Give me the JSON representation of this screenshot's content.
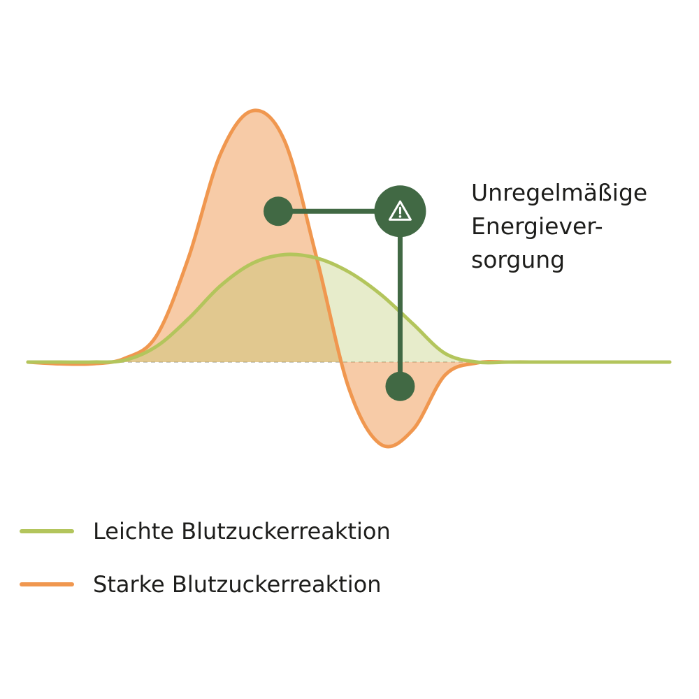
{
  "chart_data": {
    "type": "area",
    "title": "",
    "xlabel": "",
    "ylabel": "",
    "grid": false,
    "legend_placement": "bottom-left",
    "ylim": [
      -1,
      3
    ],
    "x": [
      0,
      1,
      2,
      3,
      4,
      5,
      6,
      7,
      8,
      9,
      10,
      11,
      12,
      13,
      14,
      15,
      16,
      17,
      18,
      19,
      20
    ],
    "series": [
      {
        "name": "Leichte Blutzuckerreaktion",
        "color": "#b3c55c",
        "values": [
          0,
          0,
          0,
          0.02,
          0.18,
          0.5,
          0.88,
          1.14,
          1.24,
          1.2,
          1.04,
          0.78,
          0.44,
          0.1,
          0,
          0,
          0,
          0,
          0,
          0,
          0
        ]
      },
      {
        "name": "Starke Blutzuckerreaktion",
        "color": "#f0974f",
        "values": [
          0,
          -0.02,
          -0.02,
          0.04,
          0.3,
          1.2,
          2.4,
          2.9,
          2.55,
          1.2,
          -0.3,
          -0.95,
          -0.78,
          -0.15,
          -0.01,
          0,
          0,
          0,
          0,
          0,
          0
        ]
      }
    ],
    "annotation": {
      "lines": [
        "Unregelmäßige",
        "Energiever-",
        "sorgung"
      ],
      "icon": "warning-icon",
      "marker_color": "#416944",
      "points": [
        {
          "series": "Starke Blutzuckerreaktion",
          "x": 7.8,
          "y": 1.74
        },
        {
          "series": "Starke Blutzuckerreaktion",
          "x": 11.6,
          "y": -0.28
        }
      ]
    }
  },
  "legend": {
    "items": [
      {
        "label": "Leichte Blutzuckerreaktion",
        "color": "#b3c55c"
      },
      {
        "label": "Starke Blutzuckerreaktion",
        "color": "#f0974f"
      }
    ]
  }
}
